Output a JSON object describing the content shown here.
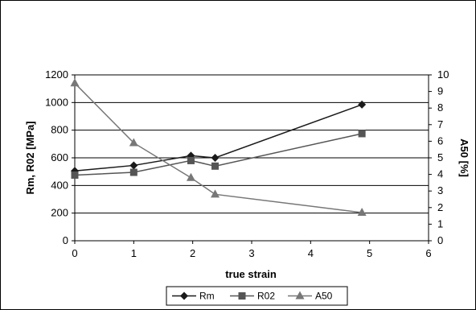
{
  "chart_data": {
    "type": "line",
    "xlabel": "true strain",
    "ylabel_left": "Rm, R02 [MPa]",
    "ylabel_right": "A50 [%]",
    "xlim": [
      0,
      6
    ],
    "ylim_left": [
      0,
      1200
    ],
    "ylim_right": [
      0,
      10
    ],
    "xticks": [
      "0",
      "1",
      "2",
      "3",
      "4",
      "5",
      "6"
    ],
    "yticks_left": [
      "0",
      "200",
      "400",
      "600",
      "800",
      "1000",
      "1200"
    ],
    "yticks_right": [
      "0",
      "1",
      "2",
      "3",
      "4",
      "5",
      "6",
      "7",
      "8",
      "9",
      "10"
    ],
    "grid": "horizontal",
    "legend_position": "bottom",
    "series": [
      {
        "name": "Rm",
        "axis": "left",
        "marker": "diamond",
        "color": "#1a1a1a",
        "x": [
          0,
          1,
          1.97,
          2.38,
          4.87
        ],
        "y": [
          505,
          545,
          615,
          600,
          985
        ]
      },
      {
        "name": "R02",
        "axis": "left",
        "marker": "square",
        "color": "#555555",
        "x": [
          0,
          1,
          1.97,
          2.38,
          4.87
        ],
        "y": [
          475,
          495,
          580,
          540,
          775
        ]
      },
      {
        "name": "A50",
        "axis": "right",
        "marker": "triangle",
        "color": "#777777",
        "x": [
          0,
          1,
          1.97,
          2.38,
          4.87
        ],
        "y": [
          9.5,
          5.9,
          3.8,
          2.8,
          1.7
        ]
      }
    ]
  }
}
